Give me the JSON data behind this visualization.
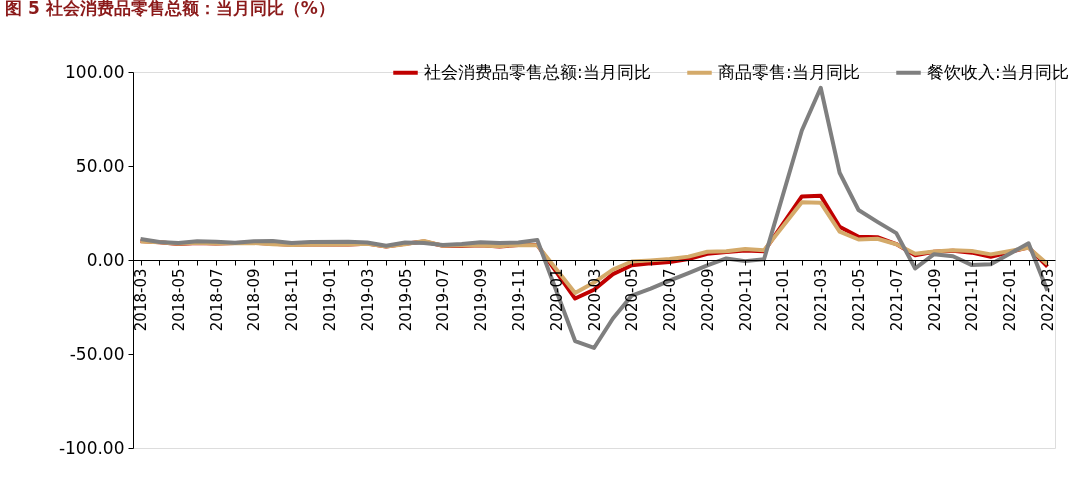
{
  "chart_data": {
    "type": "line",
    "title": "图 5 社会消费品零售总额：当月同比（%）",
    "categories": [
      "2018-03",
      null,
      "2018-05",
      null,
      "2018-07",
      null,
      "2018-09",
      null,
      "2018-11",
      null,
      "2019-01",
      null,
      "2019-03",
      null,
      "2019-05",
      null,
      "2019-07",
      null,
      "2019-09",
      null,
      "2019-11",
      null,
      "2020-01",
      null,
      "2020-03",
      null,
      "2020-05",
      null,
      "2020-07",
      null,
      "2020-09",
      null,
      "2020-11",
      null,
      "2021-01",
      null,
      "2021-03",
      null,
      "2021-05",
      null,
      "2021-07",
      null,
      "2021-09",
      null,
      "2021-11",
      null,
      "2022-01",
      null,
      "2022-03"
    ],
    "series": [
      {
        "name": "社会消费品零售总额:当月同比",
        "color": "#c00000",
        "values": [
          10.1,
          9.4,
          8.5,
          9.0,
          8.8,
          9.0,
          9.2,
          8.6,
          8.1,
          8.2,
          null,
          8.2,
          8.7,
          7.2,
          8.6,
          9.8,
          7.6,
          7.5,
          7.8,
          7.2,
          8.0,
          8.0,
          null,
          -20.5,
          -15.8,
          -7.5,
          -2.8,
          -1.8,
          -1.1,
          0.5,
          3.3,
          4.3,
          5.0,
          4.6,
          null,
          33.8,
          34.2,
          17.7,
          12.4,
          12.1,
          8.5,
          2.5,
          4.4,
          4.9,
          3.9,
          1.7,
          null,
          6.7,
          -3.5
        ]
      },
      {
        "name": "商品零售:当月同比",
        "color": "#d4aa6a",
        "values": [
          9.9,
          9.5,
          8.7,
          9.2,
          8.8,
          8.9,
          9.0,
          8.4,
          8.0,
          8.1,
          null,
          8.2,
          8.6,
          7.2,
          8.4,
          10.1,
          7.6,
          7.8,
          7.7,
          7.3,
          8.0,
          7.9,
          null,
          -17.6,
          -12.0,
          -5.1,
          -0.8,
          -0.2,
          0.5,
          1.8,
          4.4,
          4.7,
          5.8,
          5.2,
          null,
          30.7,
          30.4,
          15.1,
          10.9,
          11.3,
          8.4,
          3.3,
          4.5,
          5.2,
          4.8,
          3.0,
          null,
          6.5,
          -2.1
        ]
      },
      {
        "name": "餐饮收入:当月同比",
        "color": "#7f7f7f",
        "values": [
          11.2,
          9.6,
          9.0,
          10.0,
          9.7,
          9.2,
          10.0,
          10.1,
          9.1,
          9.6,
          null,
          9.7,
          9.3,
          7.6,
          9.3,
          9.0,
          8.0,
          8.5,
          9.4,
          9.1,
          9.3,
          10.6,
          null,
          -43.1,
          -46.8,
          -31.1,
          -18.9,
          -15.2,
          -11.0,
          -7.0,
          -2.9,
          0.8,
          -0.6,
          0.4,
          null,
          68.9,
          91.6,
          46.4,
          26.6,
          20.3,
          14.3,
          -4.5,
          3.1,
          2.0,
          -2.7,
          -2.3,
          null,
          8.9,
          -16.4
        ]
      }
    ],
    "ylim": [
      -100,
      100
    ],
    "yticks": [
      {
        "value": -100,
        "label": "-100.00"
      },
      {
        "value": -50,
        "label": "-50.00"
      },
      {
        "value": 0,
        "label": "0.00"
      },
      {
        "value": 50,
        "label": "50.00"
      },
      {
        "value": 100,
        "label": "100.00"
      }
    ],
    "grid": false,
    "legend": "top right"
  }
}
